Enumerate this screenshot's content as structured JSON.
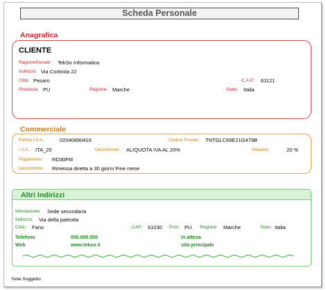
{
  "title": "Scheda Personale",
  "anagrafica": {
    "section_title": "Anagrafica",
    "heading": "CLIENTE",
    "ragione_sociale_label": "RagioneSociale:",
    "ragione_sociale": "TekSo Informatica",
    "indirizzo_label": "Indirizzo:",
    "indirizzo": "Via Cortirola 22",
    "citta_label": "Città:",
    "citta": "Pesaro",
    "cap_label": "C.A.P.:",
    "cap": "61121",
    "provincia_label": "Provincia:",
    "provincia": "PU",
    "regione_label": "Regione:",
    "regione": "Marche",
    "stato_label": "Stato:",
    "stato": "Italia"
  },
  "commerciale": {
    "section_title": "Commerciale",
    "partita_iva_label": "Partita I.V.A.:",
    "partita_iva": "02040890416",
    "codice_fiscale_label": "Codice Fiscale:",
    "codice_fiscale": "TNTGLC69E21G479B",
    "iva_label": "I.V.A.:",
    "iva": "ITA_20",
    "descrizione_iva_label": "Descrizione:",
    "descrizione_iva": "ALIQUOTA IVA AL 20%",
    "aliquota_label": "Aliquota:",
    "aliquota": "20 %",
    "pagamento_label": "Pagamento:",
    "pagamento": "RD30FM",
    "descrizione_pag_label": "Descrizione:",
    "descrizione_pag": "Rimessa diretta a 30 giorni Fine mese"
  },
  "altri_indirizzi": {
    "section_title": "Altri Indirizzi",
    "intestazione_label": "Intestazione:",
    "intestazione": "Sede secondaria",
    "indirizzo_label": "Indirizzo:",
    "indirizzo": "Via della paleotta",
    "citta_label": "Città:",
    "citta": "Fano",
    "cap_label": "CAP:",
    "cap": "61030",
    "prov_label": "Prov:",
    "prov": "PU",
    "regione_label": "Regione:",
    "regione": "Marche",
    "stato_label": "Stato:",
    "stato": "Italia",
    "telefono_label": "Telefono",
    "telefono": "000.000.000",
    "stato_attesa": "In attesa",
    "web_label": "Web",
    "web": "www.tekso.it",
    "sito": "sito principale"
  },
  "footer": {
    "note_label": "Note Soggetto:"
  },
  "colors": {
    "anagrafica": "#d8202a",
    "commerciale": "#d07a10",
    "altri_indirizzi": "#1e8a1e"
  }
}
